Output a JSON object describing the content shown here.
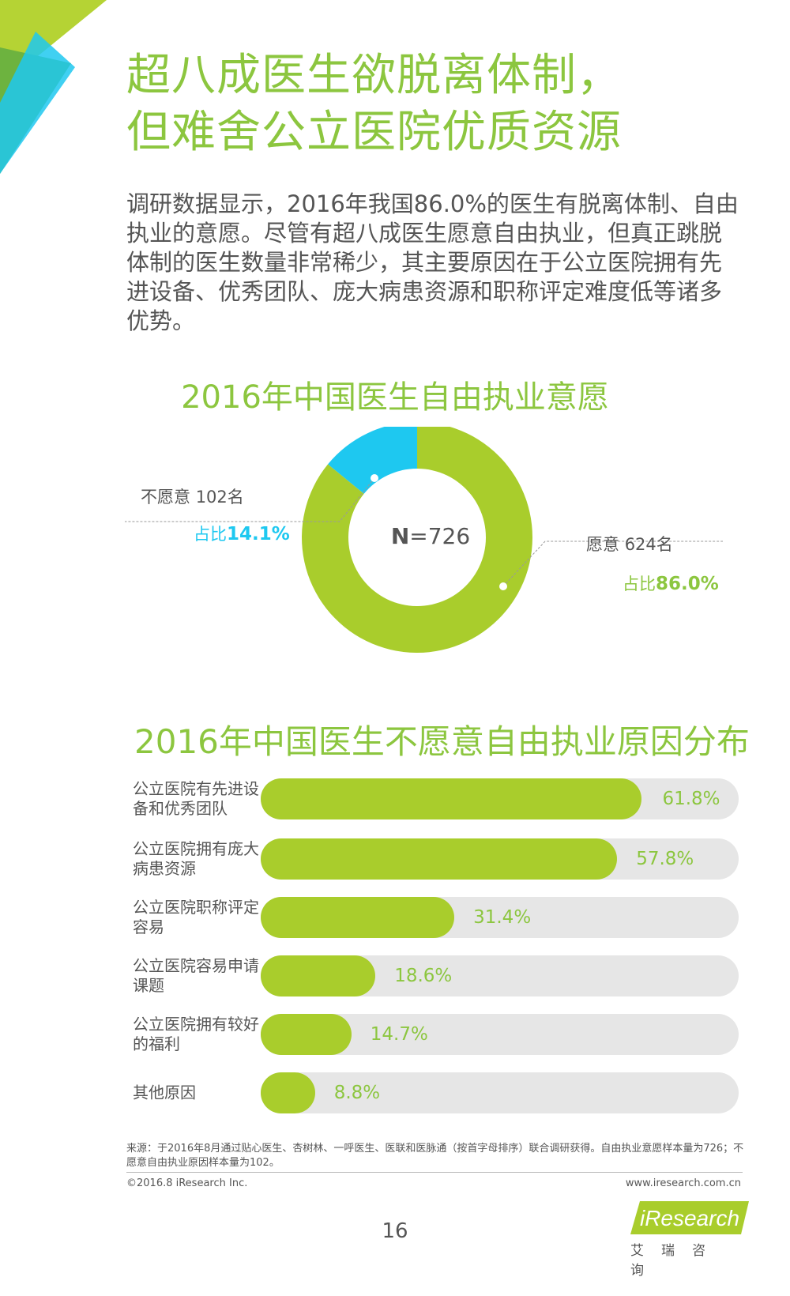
{
  "page": {
    "title_line1": "超八成医生欲脱离体制，",
    "title_line2": "但难舍公立医院优质资源",
    "intro": "调研数据显示，2016年我国86.0%的医生有脱离体制、自由执业的意愿。尽管有超八成医生愿意自由执业，但真正跳脱体制的医生数量非常稀少，其主要原因在于公立医院拥有先进设备、优秀团队、庞大病患资源和职称评定难度低等诸多优势。",
    "source": "来源：于2016年8月通过贴心医生、杏树林、一呼医生、医联和医脉通（按首字母排序）联合调研获得。自由执业意愿样本量为726；不愿意自由执业原因样本量为102。",
    "copyright": "©2016.8 iResearch Inc.",
    "website": "www.iresearch.com.cn",
    "page_number": "16",
    "logo_text": "iResearch",
    "logo_sub": "艾瑞咨询"
  },
  "colors": {
    "green": "#8cc63f",
    "bar_green": "#a9cd2c",
    "cyan": "#1ec8f0",
    "track": "#e6e6e6",
    "dark_green": "#6db33f",
    "light_green": "#b5d334"
  },
  "chart_data": [
    {
      "type": "pie",
      "title": "2016年中国医生自由执业意愿",
      "center_label_bold": "N",
      "center_label_rest": "=726",
      "slices": [
        {
          "label": "不愿意",
          "count_text": "102名",
          "count": 102,
          "pct_prefix": "占比",
          "pct_text": "14.1%",
          "value": 14.1,
          "color": "#1ec8f0"
        },
        {
          "label": "愿意",
          "count_text": "624名",
          "count": 624,
          "pct_prefix": "占比",
          "pct_text": "86.0%",
          "value": 86.0,
          "color": "#a9cd2c"
        }
      ]
    },
    {
      "type": "bar",
      "title": "2016年中国医生不愿意自由执业原因分布",
      "categories": [
        "公立医院有先进设备和优秀团队",
        "公立医院拥有庞大病患资源",
        "公立医院职称评定容易",
        "公立医院容易申请课题",
        "公立医院拥有较好的福利",
        "其他原因"
      ],
      "values": [
        61.8,
        57.8,
        31.4,
        18.6,
        14.7,
        8.8
      ],
      "value_labels": [
        "61.8%",
        "57.8%",
        "31.4%",
        "18.6%",
        "14.7%",
        "8.8%"
      ],
      "xlim": [
        0,
        100
      ]
    }
  ]
}
